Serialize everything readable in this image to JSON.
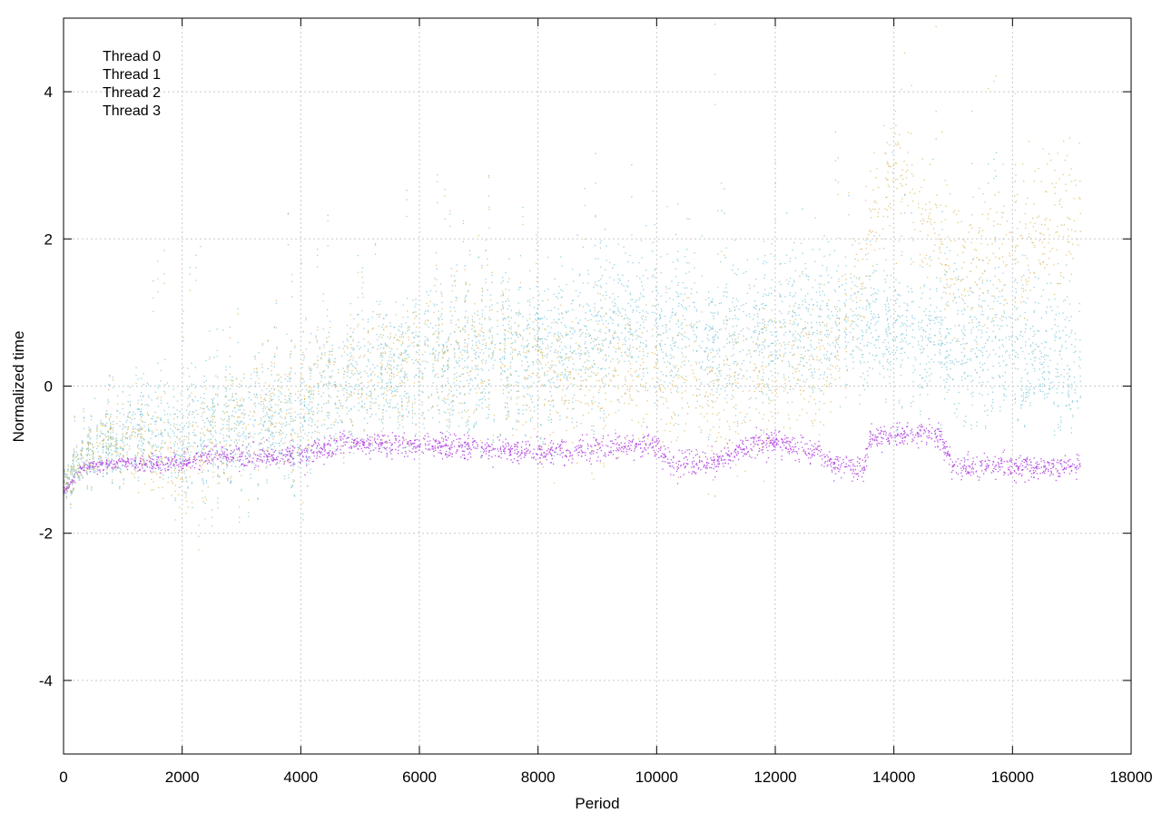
{
  "chart_data": {
    "type": "scatter",
    "title": "",
    "xlabel": "Period",
    "ylabel": "Normalized time",
    "xlim": [
      0,
      18000
    ],
    "ylim": [
      -5,
      5
    ],
    "xticks": [
      0,
      2000,
      4000,
      6000,
      8000,
      10000,
      12000,
      14000,
      16000,
      18000
    ],
    "yticks": [
      -4,
      -2,
      0,
      2,
      4
    ],
    "grid": true,
    "legend_position": "top-left",
    "series": [
      {
        "name": "Thread 0",
        "color": "#6cc3d9",
        "spread": 0.55,
        "values_approx": {
          "x": [
            0,
            300,
            800,
            1500,
            2400,
            3000,
            4000,
            5000,
            6000,
            7000,
            8000,
            9000,
            10000,
            11000,
            12000,
            13000,
            14000,
            15000,
            16000,
            17150
          ],
          "y": [
            -1.4,
            -1.0,
            -0.7,
            -0.5,
            -0.6,
            -0.4,
            -0.3,
            0.3,
            0.4,
            0.5,
            0.5,
            0.8,
            1.0,
            0.8,
            0.9,
            1.1,
            0.8,
            0.7,
            0.6,
            0.3
          ]
        }
      },
      {
        "name": "Thread 1",
        "color": "#7cc2cc",
        "spread": 0.45,
        "values_approx": {
          "x": [
            0,
            300,
            800,
            1500,
            2400,
            3000,
            4000,
            5000,
            6000,
            7000,
            8000,
            9000,
            10000,
            11000,
            12000,
            13000,
            14000,
            15000,
            16000,
            17150
          ],
          "y": [
            -1.4,
            -1.05,
            -0.8,
            -0.7,
            -0.7,
            -0.6,
            -0.5,
            0.0,
            0.1,
            0.3,
            0.3,
            0.5,
            0.6,
            0.5,
            0.6,
            0.7,
            0.6,
            0.4,
            0.4,
            0.2
          ]
        }
      },
      {
        "name": "Thread 2",
        "color": "#b145e0",
        "spread": 0.08,
        "values_approx": {
          "x": [
            0,
            300,
            1000,
            2000,
            2400,
            3000,
            4000,
            4700,
            6000,
            7000,
            8000,
            9000,
            10000,
            10300,
            11000,
            11600,
            12000,
            12700,
            13000,
            13500,
            13600,
            14500,
            14800,
            15000,
            16000,
            17150
          ],
          "y": [
            -1.45,
            -1.1,
            -1.05,
            -1.05,
            -0.95,
            -0.95,
            -0.95,
            -0.8,
            -0.8,
            -0.85,
            -0.9,
            -0.85,
            -0.8,
            -1.1,
            -1.0,
            -0.8,
            -0.75,
            -0.9,
            -1.1,
            -1.1,
            -0.7,
            -0.65,
            -0.7,
            -1.1,
            -1.1,
            -1.1
          ]
        }
      },
      {
        "name": "Thread 3",
        "color": "#d9b556",
        "spread": 0.5,
        "values_approx": {
          "x": [
            0,
            300,
            800,
            1500,
            2400,
            3000,
            4000,
            5000,
            6000,
            7000,
            8000,
            9000,
            10000,
            11000,
            12000,
            13000,
            14000,
            15000,
            16000,
            17150
          ],
          "y": [
            -1.4,
            -1.0,
            -0.7,
            -0.9,
            -0.9,
            -0.3,
            -0.2,
            0.2,
            0.3,
            0.6,
            0.1,
            0.0,
            0.0,
            -0.1,
            0.1,
            0.4,
            3.0,
            1.5,
            1.8,
            2.5
          ]
        }
      }
    ]
  }
}
